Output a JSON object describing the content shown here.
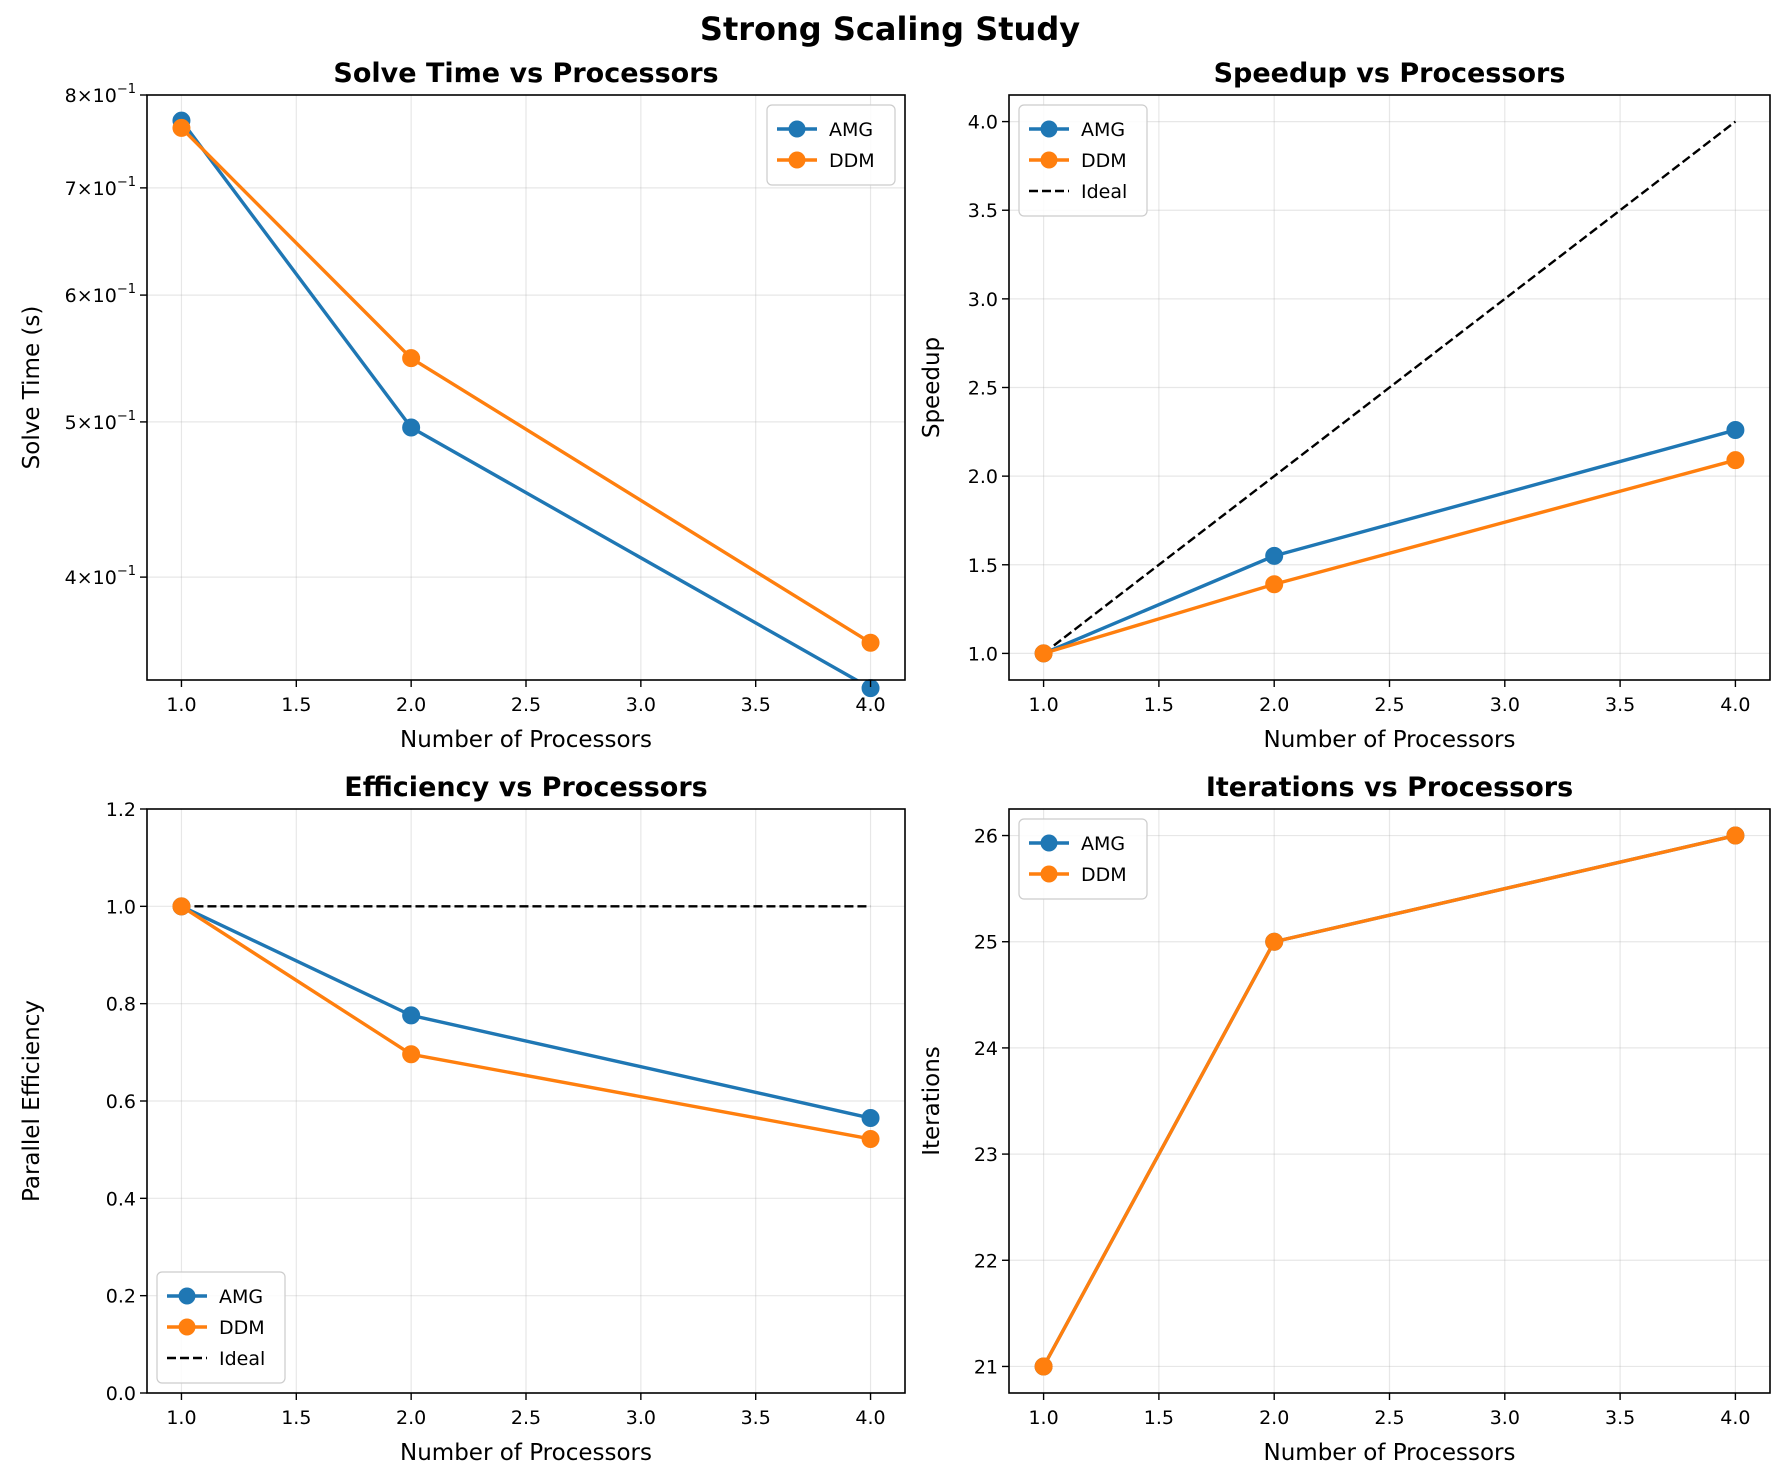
{
  "figure": {
    "title": "Strong Scaling Study"
  },
  "colors": {
    "AMG": "#1f77b4",
    "DDM": "#ff7f0e",
    "Ideal": "#000000",
    "grid": "#b0b0b0"
  },
  "chart_data": [
    {
      "id": "p1",
      "type": "line",
      "title": "Solve Time vs Processors",
      "xlabel": "Number of Processors",
      "ylabel": "Solve Time (s)",
      "yscale": "log",
      "xlim": [
        0.85,
        4.15
      ],
      "ylim": [
        0.345,
        0.8
      ],
      "xticks": [
        1.0,
        1.5,
        2.0,
        2.5,
        3.0,
        3.5,
        4.0
      ],
      "xtick_labels": [
        "1.0",
        "1.5",
        "2.0",
        "2.5",
        "3.0",
        "3.5",
        "4.0"
      ],
      "yticks": [
        0.4,
        0.5,
        0.6,
        0.7,
        0.8
      ],
      "ytick_labels": [
        {
          "base": "4×10",
          "exp": "−1"
        },
        {
          "base": "5×10",
          "exp": "−1"
        },
        {
          "base": "6×10",
          "exp": "−1"
        },
        {
          "base": "7×10",
          "exp": "−1"
        },
        {
          "base": "8×10",
          "exp": "−1"
        }
      ],
      "grid": true,
      "legend_position": "upper-right",
      "series": [
        {
          "name": "AMG",
          "x": [
            1,
            2,
            4
          ],
          "y": [
            0.771,
            0.496,
            0.341
          ],
          "style": "line-marker"
        },
        {
          "name": "DDM",
          "x": [
            1,
            2,
            4
          ],
          "y": [
            0.763,
            0.548,
            0.364
          ],
          "style": "line-marker"
        }
      ]
    },
    {
      "id": "p2",
      "type": "line",
      "title": "Speedup vs Processors",
      "xlabel": "Number of Processors",
      "ylabel": "Speedup",
      "yscale": "linear",
      "xlim": [
        0.85,
        4.15
      ],
      "ylim": [
        0.85,
        4.15
      ],
      "xticks": [
        1.0,
        1.5,
        2.0,
        2.5,
        3.0,
        3.5,
        4.0
      ],
      "xtick_labels": [
        "1.0",
        "1.5",
        "2.0",
        "2.5",
        "3.0",
        "3.5",
        "4.0"
      ],
      "yticks": [
        1.0,
        1.5,
        2.0,
        2.5,
        3.0,
        3.5,
        4.0
      ],
      "ytick_labels": [
        "1.0",
        "1.5",
        "2.0",
        "2.5",
        "3.0",
        "3.5",
        "4.0"
      ],
      "grid": true,
      "legend_position": "upper-left",
      "series": [
        {
          "name": "AMG",
          "x": [
            1,
            2,
            4
          ],
          "y": [
            1.0,
            1.55,
            2.26
          ],
          "style": "line-marker"
        },
        {
          "name": "DDM",
          "x": [
            1,
            2,
            4
          ],
          "y": [
            1.0,
            1.39,
            2.09
          ],
          "style": "line-marker"
        },
        {
          "name": "Ideal",
          "x": [
            1,
            2,
            4
          ],
          "y": [
            1.0,
            2.0,
            4.0
          ],
          "style": "dashed"
        }
      ]
    },
    {
      "id": "p3",
      "type": "line",
      "title": "Efficiency vs Processors",
      "xlabel": "Number of Processors",
      "ylabel": "Parallel Efficiency",
      "yscale": "linear",
      "xlim": [
        0.85,
        4.15
      ],
      "ylim": [
        0.0,
        1.2
      ],
      "xticks": [
        1.0,
        1.5,
        2.0,
        2.5,
        3.0,
        3.5,
        4.0
      ],
      "xtick_labels": [
        "1.0",
        "1.5",
        "2.0",
        "2.5",
        "3.0",
        "3.5",
        "4.0"
      ],
      "yticks": [
        0.0,
        0.2,
        0.4,
        0.6,
        0.8,
        1.0,
        1.2
      ],
      "ytick_labels": [
        "0.0",
        "0.2",
        "0.4",
        "0.6",
        "0.8",
        "1.0",
        "1.2"
      ],
      "grid": true,
      "legend_position": "lower-left",
      "series": [
        {
          "name": "AMG",
          "x": [
            1,
            2,
            4
          ],
          "y": [
            1.0,
            0.776,
            0.565
          ],
          "style": "line-marker"
        },
        {
          "name": "DDM",
          "x": [
            1,
            2,
            4
          ],
          "y": [
            1.0,
            0.696,
            0.522
          ],
          "style": "line-marker"
        },
        {
          "name": "Ideal",
          "x": [
            1,
            4
          ],
          "y": [
            1.0,
            1.0
          ],
          "style": "dashed"
        }
      ]
    },
    {
      "id": "p4",
      "type": "line",
      "title": "Iterations vs Processors",
      "xlabel": "Number of Processors",
      "ylabel": "Iterations",
      "yscale": "linear",
      "xlim": [
        0.85,
        4.15
      ],
      "ylim": [
        20.75,
        26.25
      ],
      "xticks": [
        1.0,
        1.5,
        2.0,
        2.5,
        3.0,
        3.5,
        4.0
      ],
      "xtick_labels": [
        "1.0",
        "1.5",
        "2.0",
        "2.5",
        "3.0",
        "3.5",
        "4.0"
      ],
      "yticks": [
        21,
        22,
        23,
        24,
        25,
        26
      ],
      "ytick_labels": [
        "21",
        "22",
        "23",
        "24",
        "25",
        "26"
      ],
      "grid": true,
      "legend_position": "upper-left",
      "series": [
        {
          "name": "AMG",
          "x": [
            1,
            2,
            4
          ],
          "y": [
            21,
            25,
            26
          ],
          "style": "line-marker"
        },
        {
          "name": "DDM",
          "x": [
            1,
            2,
            4
          ],
          "y": [
            21,
            25,
            26
          ],
          "style": "line-marker"
        }
      ]
    }
  ]
}
